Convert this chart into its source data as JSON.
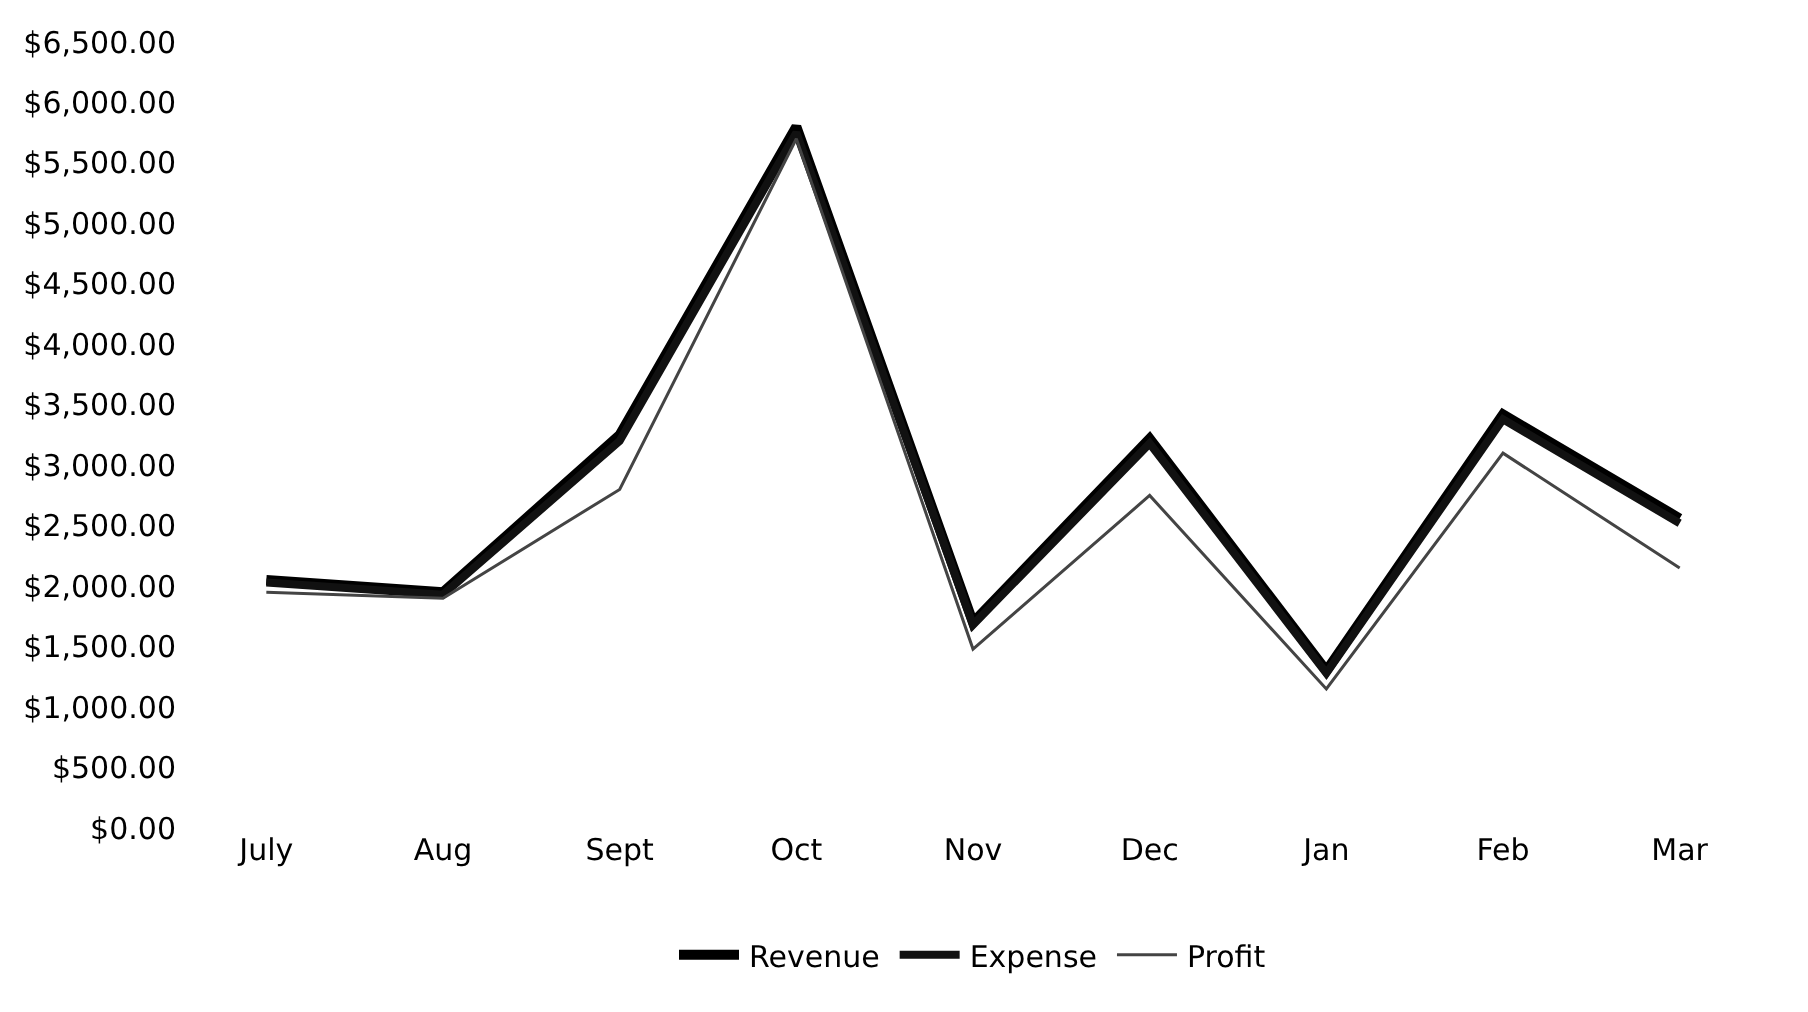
{
  "chart_data": {
    "type": "line",
    "categories": [
      "July",
      "Aug",
      "Sept",
      "Oct",
      "Nov",
      "Dec",
      "Jan",
      "Feb",
      "Mar"
    ],
    "series": [
      {
        "name": "Revenue",
        "color": "#000000",
        "values": [
          2050,
          1950,
          3250,
          5800,
          1700,
          3220,
          1300,
          3420,
          2560
        ]
      },
      {
        "name": "Expense",
        "color": "#111111",
        "values": [
          2030,
          1930,
          3200,
          5750,
          1680,
          3180,
          1280,
          3380,
          2520
        ]
      },
      {
        "name": "Profit",
        "color": "#444444",
        "values": [
          1950,
          1900,
          2800,
          5700,
          1480,
          2750,
          1150,
          3100,
          2150
        ]
      }
    ],
    "ylim": [
      0,
      6500
    ],
    "yticks": [
      {
        "value": 0,
        "label": "$0.00"
      },
      {
        "value": 500,
        "label": "$500.00"
      },
      {
        "value": 1000,
        "label": "$1,000.00"
      },
      {
        "value": 1500,
        "label": "$1,500.00"
      },
      {
        "value": 2000,
        "label": "$2,000.00"
      },
      {
        "value": 2500,
        "label": "$2,500.00"
      },
      {
        "value": 3000,
        "label": "$3,000.00"
      },
      {
        "value": 3500,
        "label": "$3,500.00"
      },
      {
        "value": 4000,
        "label": "$4,000.00"
      },
      {
        "value": 4500,
        "label": "$4,500.00"
      },
      {
        "value": 5000,
        "label": "$5,000.00"
      },
      {
        "value": 5500,
        "label": "$5,500.00"
      },
      {
        "value": 6000,
        "label": "$6,000.00"
      },
      {
        "value": 6500,
        "label": "$6,500.00"
      }
    ],
    "grid": false,
    "legend": "bottom",
    "marker": "none",
    "line_style": "solid"
  }
}
